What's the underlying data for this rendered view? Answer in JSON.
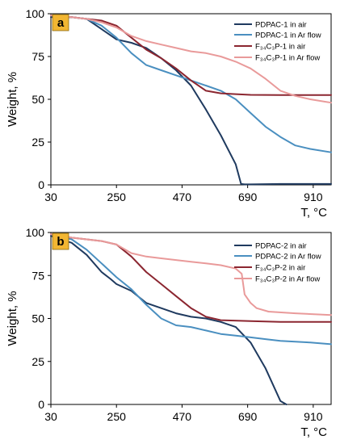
{
  "chart_data": [
    {
      "type": "line",
      "panel_label": "a",
      "xlabel": "T, °C",
      "ylabel": "Weight, %",
      "xlim": [
        30,
        970
      ],
      "ylim": [
        0,
        100
      ],
      "xticks": [
        30,
        250,
        470,
        690,
        910
      ],
      "yticks": [
        0,
        25,
        50,
        75,
        100
      ],
      "grid": false,
      "legend_position": "top-right",
      "series": [
        {
          "name": "PDPAC-1 in air",
          "color": "#1f3a5f",
          "x": [
            30,
            100,
            150,
            200,
            250,
            300,
            350,
            400,
            450,
            500,
            550,
            600,
            650,
            668,
            680,
            700,
            800,
            970
          ],
          "y": [
            98,
            98,
            97,
            91,
            85,
            83,
            80,
            74,
            67,
            58,
            44,
            29,
            12,
            0.5,
            0.3,
            0.3,
            0.5,
            0.5
          ]
        },
        {
          "name": "PDPAC-1 in Ar flow",
          "color": "#4a8fc0",
          "x": [
            30,
            100,
            150,
            200,
            250,
            300,
            350,
            400,
            450,
            500,
            550,
            600,
            650,
            700,
            750,
            800,
            850,
            900,
            970
          ],
          "y": [
            99,
            98,
            97,
            93,
            86,
            77,
            70,
            67,
            64,
            61,
            58,
            55,
            50,
            42,
            34,
            28,
            23,
            21,
            19
          ]
        },
        {
          "name": "F₃₄C₃P-1 in air",
          "color": "#8b2630",
          "x": [
            30,
            100,
            150,
            200,
            250,
            300,
            350,
            400,
            450,
            500,
            550,
            600,
            650,
            700,
            800,
            900,
            970
          ],
          "y": [
            99,
            98,
            97,
            96,
            93,
            86,
            79,
            74,
            68,
            61,
            55,
            53.5,
            53,
            52.6,
            52.5,
            52.5,
            52.5
          ]
        },
        {
          "name": "F₃₄C₃P-1 in Ar flow",
          "color": "#e99a9a",
          "x": [
            30,
            100,
            150,
            200,
            250,
            300,
            350,
            400,
            450,
            500,
            550,
            600,
            650,
            700,
            750,
            800,
            850,
            900,
            970
          ],
          "y": [
            99,
            98,
            97,
            95,
            92,
            87,
            84,
            82,
            80,
            78,
            77,
            75,
            72,
            68,
            62,
            55,
            52,
            50,
            48
          ]
        }
      ]
    },
    {
      "type": "line",
      "panel_label": "b",
      "xlabel": "T, °C",
      "ylabel": "Weight, %",
      "xlim": [
        30,
        970
      ],
      "ylim": [
        0,
        100
      ],
      "xticks": [
        30,
        250,
        470,
        690,
        910
      ],
      "yticks": [
        0,
        25,
        50,
        75,
        100
      ],
      "grid": false,
      "legend_position": "top-right",
      "series": [
        {
          "name": "PDPAC-2 in air",
          "color": "#1f3a5f",
          "x": [
            30,
            100,
            150,
            200,
            230,
            250,
            300,
            350,
            400,
            450,
            500,
            550,
            600,
            650,
            700,
            750,
            800,
            820
          ],
          "y": [
            98,
            94,
            87,
            77,
            73,
            70,
            66,
            59,
            56,
            53,
            51,
            50,
            48,
            45,
            36,
            21,
            2,
            0
          ]
        },
        {
          "name": "PDPAC-2 in Ar flow",
          "color": "#4a8fc0",
          "x": [
            30,
            100,
            150,
            200,
            250,
            300,
            350,
            400,
            450,
            500,
            550,
            600,
            650,
            700,
            750,
            800,
            900,
            970
          ],
          "y": [
            99,
            96,
            90,
            82,
            74,
            67,
            58,
            50,
            46,
            45,
            43,
            41,
            40,
            39,
            38,
            37,
            36,
            35
          ]
        },
        {
          "name": "F₃₄C₃P-2 in air",
          "color": "#8b2630",
          "x": [
            30,
            100,
            150,
            200,
            250,
            300,
            350,
            400,
            450,
            500,
            550,
            600,
            700,
            800,
            970
          ],
          "y": [
            99,
            97,
            96,
            95,
            93,
            86,
            77,
            70,
            63,
            56,
            51,
            49,
            48.5,
            48,
            48
          ]
        },
        {
          "name": "F₃₄C₃P-2 in Ar flow",
          "color": "#e99a9a",
          "x": [
            30,
            100,
            150,
            200,
            250,
            300,
            350,
            400,
            450,
            500,
            550,
            600,
            650,
            670,
            680,
            700,
            720,
            760,
            850,
            970
          ],
          "y": [
            99,
            97,
            96,
            95,
            93,
            88,
            86,
            85,
            84,
            83,
            82,
            81,
            79,
            76,
            64,
            59,
            56,
            54,
            53,
            52
          ]
        }
      ]
    }
  ]
}
